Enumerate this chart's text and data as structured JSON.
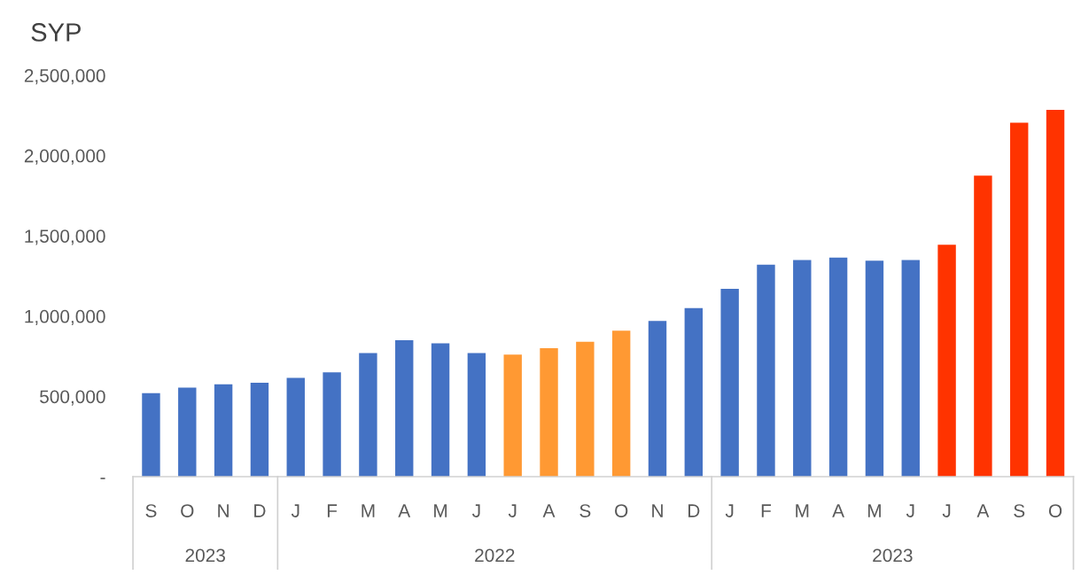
{
  "chart_data": {
    "type": "bar",
    "ylabel": "SYP",
    "categories": [
      "S",
      "O",
      "N",
      "D",
      "J",
      "F",
      "M",
      "A",
      "M",
      "J",
      "J",
      "A",
      "S",
      "O",
      "N",
      "D",
      "J",
      "F",
      "M",
      "A",
      "M",
      "J",
      "J",
      "A",
      "S",
      "O"
    ],
    "values": [
      520000,
      555000,
      575000,
      585000,
      615000,
      650000,
      770000,
      850000,
      830000,
      770000,
      760000,
      800000,
      840000,
      910000,
      970000,
      1050000,
      1170000,
      1320000,
      1350000,
      1365000,
      1345000,
      1350000,
      1445000,
      1875000,
      2205000,
      2285000
    ],
    "colors": [
      "#4472c4",
      "#4472c4",
      "#4472c4",
      "#4472c4",
      "#4472c4",
      "#4472c4",
      "#4472c4",
      "#4472c4",
      "#4472c4",
      "#4472c4",
      "#ff9933",
      "#ff9933",
      "#ff9933",
      "#ff9933",
      "#4472c4",
      "#4472c4",
      "#4472c4",
      "#4472c4",
      "#4472c4",
      "#4472c4",
      "#4472c4",
      "#4472c4",
      "#ff3300",
      "#ff3300",
      "#ff3300",
      "#ff3300"
    ],
    "ylim": [
      0,
      2500000
    ],
    "yticks": [
      {
        "value": 0,
        "label": "-"
      },
      {
        "value": 500000,
        "label": "500,000"
      },
      {
        "value": 1000000,
        "label": "1,000,000"
      },
      {
        "value": 1500000,
        "label": "1,500,000"
      },
      {
        "value": 2000000,
        "label": "2,000,000"
      },
      {
        "value": 2500000,
        "label": "2,500,000"
      }
    ],
    "annotations": [
      "2023",
      "2022",
      "2023"
    ],
    "grid": false,
    "legend": false
  }
}
